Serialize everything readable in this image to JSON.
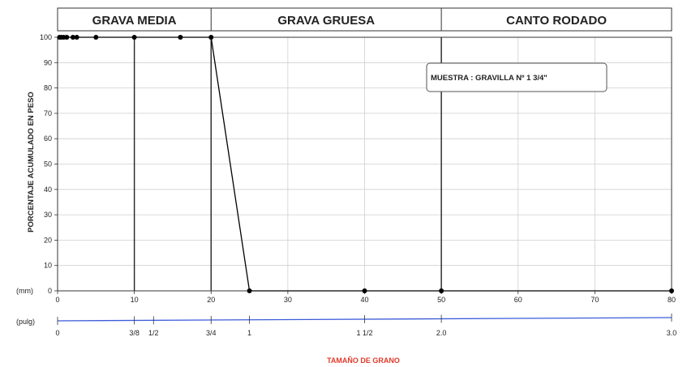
{
  "chart_data": {
    "type": "line",
    "title": "",
    "bands": [
      {
        "label": "GRAVA MEDIA",
        "from": 0,
        "to": 20
      },
      {
        "label": "GRAVA GRUESA",
        "from": 20,
        "to": 50
      },
      {
        "label": "CANTO RODADO",
        "from": 50,
        "to": 80
      }
    ],
    "ylabel": "PORCENTAJE ACUMULADO EN PESO",
    "xlabel": "TAMAÑO DE GRANO",
    "ylim": [
      0,
      100
    ],
    "xlim": [
      0,
      80
    ],
    "y_ticks": [
      0,
      10,
      20,
      30,
      40,
      50,
      60,
      70,
      80,
      90,
      100
    ],
    "x_ticks_mm": [
      0,
      10,
      20,
      30,
      40,
      50,
      60,
      70,
      80
    ],
    "grid": true,
    "mm_unit_label": "(mm)",
    "pulg_unit_label": "(pulg)",
    "pulg_ticks": [
      {
        "label": "0",
        "mm": 0
      },
      {
        "label": "3/8",
        "mm": 10
      },
      {
        "label": "1/2",
        "mm": 12.5
      },
      {
        "label": "3/4",
        "mm": 20
      },
      {
        "label": "1",
        "mm": 25
      },
      {
        "label": "1 1/2",
        "mm": 40
      },
      {
        "label": "2.0",
        "mm": 50
      },
      {
        "label": "3.0",
        "mm": 80
      }
    ],
    "annotation": "MUESTRA : GRAVILLA Nº 1 3/4\"",
    "series": [
      {
        "x": [
          0.25,
          0.5,
          0.8,
          1.2,
          2.0,
          2.5,
          5.0,
          10.0,
          16.0,
          20.0,
          25.0,
          40.0,
          50.0,
          80.0
        ],
        "y": [
          100,
          100,
          100,
          100,
          100,
          100,
          100,
          100,
          100,
          100,
          0,
          0,
          0,
          0
        ],
        "color": "#000000"
      }
    ]
  }
}
